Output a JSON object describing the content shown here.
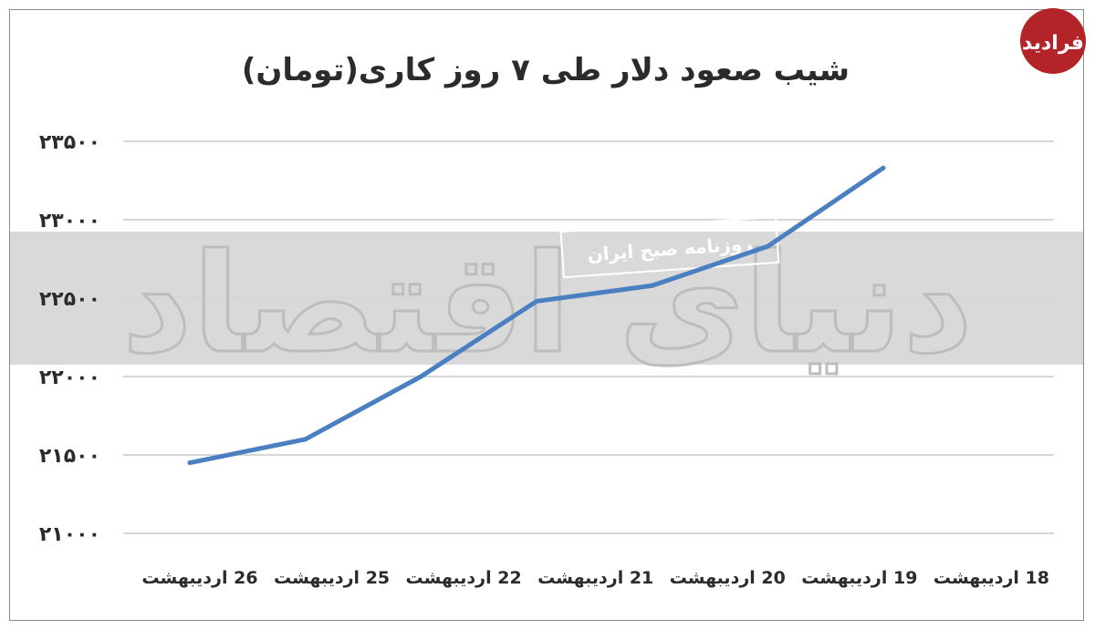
{
  "chart_data": {
    "type": "line",
    "title": "شیب صعود دلار طی ۷ روز کاری(تومان)",
    "categories": [
      "18 اردیبهشت",
      "19 اردیبهشت",
      "20 اردیبهشت",
      "21 اردیبهشت",
      "22 اردیبهشت",
      "25 اردیبهشت",
      "26 اردیبهشت"
    ],
    "x_order": "right-to-left",
    "yticks": [
      "۲۱۰۰۰",
      "۲۱۵۰۰",
      "۲۲۰۰۰",
      "۲۲۵۰۰",
      "۲۳۰۰۰",
      "۲۳۵۰۰"
    ],
    "ytick_values": [
      21000,
      21500,
      22000,
      22500,
      23000,
      23500
    ],
    "ylim": [
      21000,
      23500
    ],
    "series": [
      {
        "values": [
          23330,
          22830,
          22580,
          22480,
          22000,
          21600,
          21450
        ]
      }
    ],
    "line_color": "#4a7fc1",
    "grid": true
  },
  "watermark": {
    "main": "دنیای اقتصاد",
    "sub": "روزنامه صبح ایران"
  },
  "logo": {
    "text": "فرادید",
    "color": "#b32428"
  },
  "colors": {
    "band": "#d9d9d9",
    "grid": "#d6d6d6",
    "text": "#2b2b2b"
  }
}
